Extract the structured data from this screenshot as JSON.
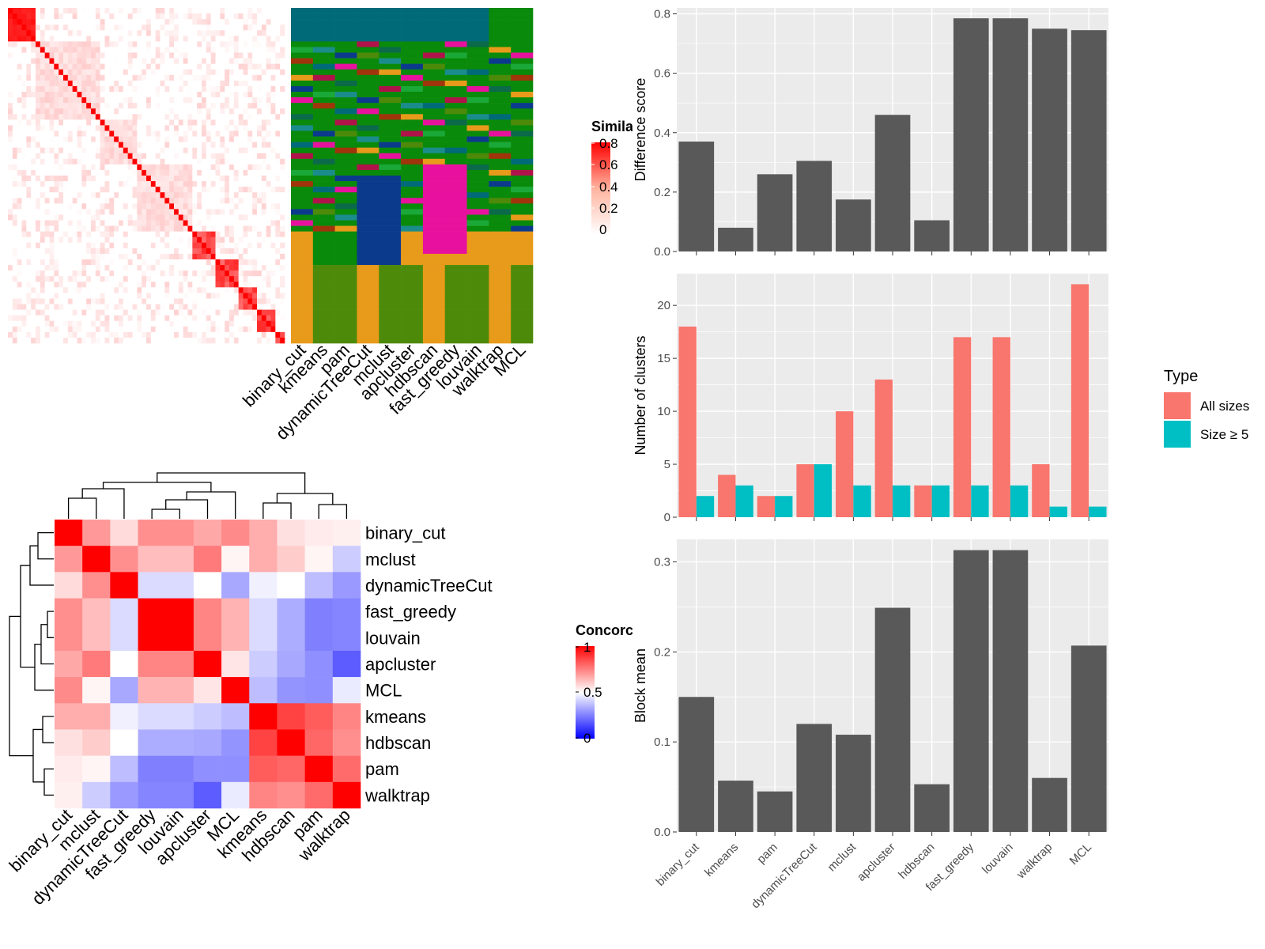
{
  "methods": [
    "binary_cut",
    "kmeans",
    "pam",
    "dynamicTreeCut",
    "mclust",
    "apcluster",
    "hdbscan",
    "fast_greedy",
    "louvain",
    "walktrap",
    "MCL"
  ],
  "colors": {
    "bar_dark": "#595959",
    "panel_bg": "#ebebeb",
    "all_sizes": "#f8766d",
    "size_ge_5": "#00bfc4",
    "sim_high": "#ff0000",
    "sim_low": "#ffffff",
    "conc_low": "#0000ff",
    "conc_mid": "#ffffff",
    "conc_high": "#ff0000"
  },
  "similarity_legend": {
    "title": "Simila",
    "ticks": [
      "0.8",
      "0.6",
      "0.4",
      "0.2",
      "0"
    ]
  },
  "concordance_legend": {
    "title": "Concorc",
    "ticks": [
      "1",
      "0.5",
      "0"
    ]
  },
  "assignment_heatmap": {
    "labels": [
      "binary_cut",
      "kmeans",
      "pam",
      "dynamicTreeCut",
      "mclust",
      "apcluster",
      "hdbscan",
      "fast_greedy",
      "louvain",
      "walktrap",
      "MCL"
    ]
  },
  "concordance_heatmap": {
    "order": [
      "binary_cut",
      "mclust",
      "dynamicTreeCut",
      "fast_greedy",
      "louvain",
      "apcluster",
      "MCL",
      "kmeans",
      "hdbscan",
      "pam",
      "walktrap"
    ],
    "matrix": [
      [
        1.0,
        0.7,
        0.57,
        0.72,
        0.72,
        0.67,
        0.73,
        0.66,
        0.56,
        0.54,
        0.53
      ],
      [
        0.7,
        1.0,
        0.72,
        0.63,
        0.63,
        0.76,
        0.52,
        0.66,
        0.6,
        0.52,
        0.4
      ],
      [
        0.57,
        0.72,
        1.0,
        0.43,
        0.43,
        0.5,
        0.33,
        0.47,
        0.5,
        0.37,
        0.3
      ],
      [
        0.72,
        0.63,
        0.43,
        1.0,
        1.0,
        0.74,
        0.65,
        0.43,
        0.34,
        0.25,
        0.26
      ],
      [
        0.72,
        0.63,
        0.43,
        1.0,
        1.0,
        0.74,
        0.65,
        0.43,
        0.34,
        0.25,
        0.26
      ],
      [
        0.67,
        0.76,
        0.5,
        0.74,
        0.74,
        1.0,
        0.55,
        0.4,
        0.33,
        0.28,
        0.18
      ],
      [
        0.73,
        0.52,
        0.33,
        0.65,
        0.65,
        0.55,
        1.0,
        0.37,
        0.29,
        0.28,
        0.46
      ],
      [
        0.66,
        0.66,
        0.47,
        0.43,
        0.43,
        0.4,
        0.37,
        1.0,
        0.87,
        0.82,
        0.74
      ],
      [
        0.56,
        0.6,
        0.5,
        0.34,
        0.34,
        0.33,
        0.29,
        0.87,
        1.0,
        0.8,
        0.72
      ],
      [
        0.54,
        0.52,
        0.37,
        0.25,
        0.25,
        0.28,
        0.28,
        0.82,
        0.8,
        1.0,
        0.79
      ],
      [
        0.53,
        0.4,
        0.3,
        0.26,
        0.26,
        0.18,
        0.46,
        0.74,
        0.72,
        0.79,
        1.0
      ]
    ]
  },
  "chart_data": [
    {
      "type": "bar",
      "categories": [
        "binary_cut",
        "kmeans",
        "pam",
        "dynamicTreeCut",
        "mclust",
        "apcluster",
        "hdbscan",
        "fast_greedy",
        "louvain",
        "walktrap",
        "MCL"
      ],
      "values": [
        0.37,
        0.08,
        0.26,
        0.305,
        0.175,
        0.46,
        0.105,
        0.785,
        0.785,
        0.75,
        0.745
      ],
      "ylabel": "Difference score",
      "ylim": [
        0,
        0.82
      ],
      "yticks": [
        "0.0",
        "0.2",
        "0.4",
        "0.6",
        "0.8"
      ],
      "grid": true
    },
    {
      "type": "bar",
      "categories": [
        "binary_cut",
        "kmeans",
        "pam",
        "dynamicTreeCut",
        "mclust",
        "apcluster",
        "hdbscan",
        "fast_greedy",
        "louvain",
        "walktrap",
        "MCL"
      ],
      "series": [
        {
          "name": "All sizes",
          "values": [
            18,
            4,
            2,
            5,
            10,
            13,
            3,
            17,
            17,
            5,
            22
          ]
        },
        {
          "name": "Size ≥ 5",
          "values": [
            2,
            3,
            2,
            5,
            3,
            3,
            3,
            3,
            3,
            1,
            1
          ]
        }
      ],
      "ylabel": "Number of clusters",
      "ylim": [
        0,
        23
      ],
      "yticks": [
        "0",
        "5",
        "10",
        "15",
        "20"
      ],
      "legend_title": "Type",
      "legend_position": "right",
      "grid": true
    },
    {
      "type": "bar",
      "categories": [
        "binary_cut",
        "kmeans",
        "pam",
        "dynamicTreeCut",
        "mclust",
        "apcluster",
        "hdbscan",
        "fast_greedy",
        "louvain",
        "walktrap",
        "MCL"
      ],
      "values": [
        0.15,
        0.057,
        0.045,
        0.12,
        0.108,
        0.249,
        0.053,
        0.313,
        0.313,
        0.06,
        0.207
      ],
      "ylabel": "Block mean",
      "ylim": [
        0,
        0.325
      ],
      "yticks": [
        "0.0",
        "0.1",
        "0.2",
        "0.3"
      ],
      "grid": true
    }
  ]
}
